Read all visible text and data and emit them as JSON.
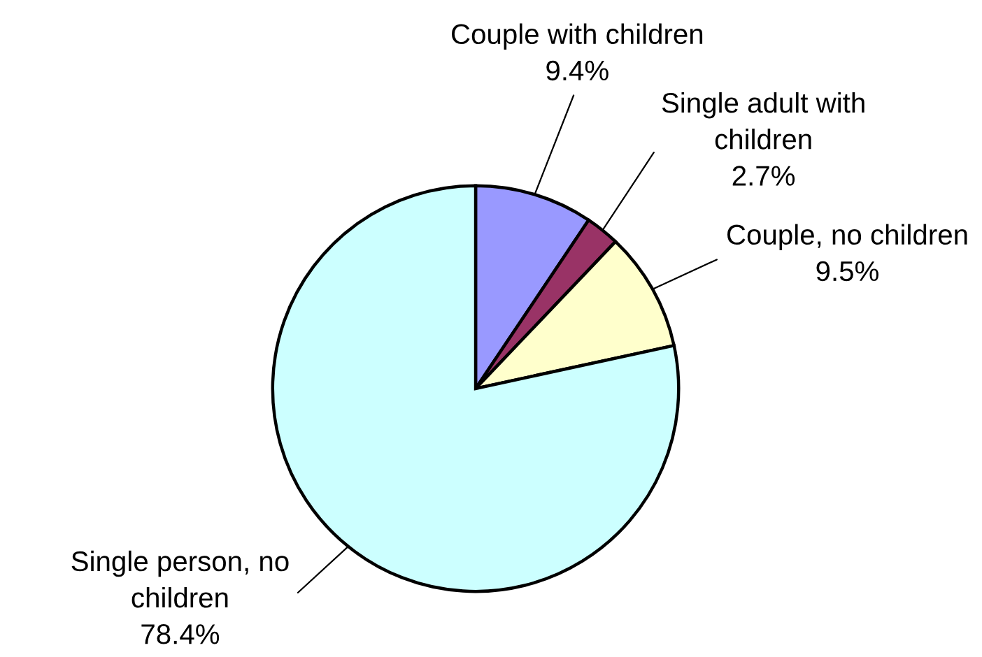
{
  "chart_data": {
    "type": "pie",
    "categories": [
      "Couple with children",
      "Single adult with\nchildren",
      "Couple, no children",
      "Single person, no\nchildren"
    ],
    "values": [
      9.4,
      2.7,
      9.5,
      78.4
    ],
    "colors": [
      "#9999ff",
      "#993366",
      "#ffffcc",
      "#ccffff"
    ],
    "value_labels": [
      "9.4%",
      "2.7%",
      "9.5%",
      "78.4%"
    ]
  }
}
